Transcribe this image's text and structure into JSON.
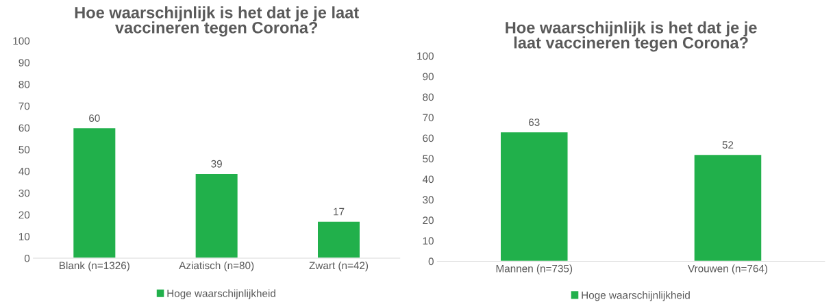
{
  "chart_data": [
    {
      "type": "bar",
      "title": "Hoe waarschijnlijk is het dat je je laat\nvaccineren tegen Corona?",
      "categories": [
        "Blank (n=1326)",
        "Aziatisch (n=80)",
        "Zwart (n=42)"
      ],
      "series": [
        {
          "name": "Hoge waarschijnlijkheid",
          "color": "#21b04b",
          "values": [
            60,
            39,
            17
          ]
        }
      ],
      "ylim": [
        0,
        100
      ],
      "yticks": [
        0,
        10,
        20,
        30,
        40,
        50,
        60,
        70,
        80,
        90,
        100
      ],
      "grid": false,
      "legend": "bottom",
      "data_labels": true
    },
    {
      "type": "bar",
      "title": "Hoe waarschijnlijk is het dat je je\nlaat vaccineren tegen Corona?",
      "categories": [
        "Mannen (n=735)",
        "Vrouwen (n=764)"
      ],
      "series": [
        {
          "name": "Hoge waarschijnlijkheid",
          "color": "#21b04b",
          "values": [
            63,
            52
          ]
        }
      ],
      "ylim": [
        0,
        100
      ],
      "yticks": [
        0,
        10,
        20,
        30,
        40,
        50,
        60,
        70,
        80,
        90,
        100
      ],
      "grid": false,
      "legend": "bottom",
      "data_labels": true
    }
  ]
}
